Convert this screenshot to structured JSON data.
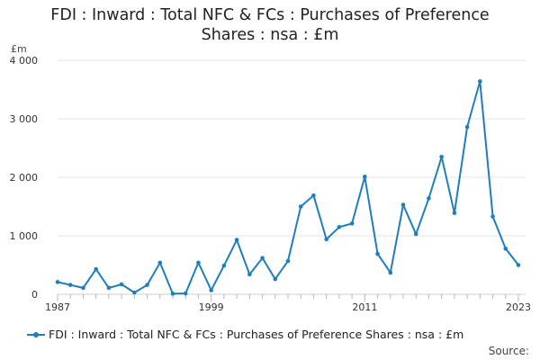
{
  "chart_data": {
    "type": "line",
    "title_line1": "FDI : Inward : Total NFC & FCs : Purchases of Preference",
    "title_line2": "Shares : nsa : £m",
    "ylabel": "£m",
    "xlabel": "",
    "ylim": [
      0,
      4000
    ],
    "y_ticks": [
      0,
      1000,
      2000,
      3000,
      4000
    ],
    "y_tick_labels": [
      "0",
      "1 000",
      "2 000",
      "3 000",
      "4 000"
    ],
    "x_tick_labels": [
      "1987",
      "1999",
      "2011",
      "2023"
    ],
    "x_ticks": [
      1987,
      1999,
      2011,
      2023
    ],
    "xlim": [
      1987,
      2023
    ],
    "grid": true,
    "legend_position": "bottom",
    "series": [
      {
        "name": "FDI : Inward : Total NFC & FCs : Purchases of Preference Shares : nsa : £m",
        "color": "#1f7fb8",
        "x": [
          1987,
          1988,
          1989,
          1990,
          1991,
          1992,
          1993,
          1994,
          1995,
          1996,
          1997,
          1998,
          1999,
          2000,
          2001,
          2002,
          2003,
          2004,
          2005,
          2006,
          2007,
          2008,
          2009,
          2010,
          2011,
          2012,
          2013,
          2014,
          2015,
          2016,
          2017,
          2018,
          2019,
          2020,
          2021,
          2022,
          2023
        ],
        "values": [
          210,
          160,
          110,
          430,
          110,
          170,
          30,
          160,
          540,
          10,
          15,
          540,
          70,
          490,
          930,
          340,
          620,
          260,
          570,
          1500,
          1690,
          940,
          1150,
          1210,
          2010,
          690,
          370,
          1530,
          1030,
          1640,
          2350,
          1390,
          2860,
          3640,
          1330,
          780,
          500
        ]
      }
    ],
    "source_label": "Source:"
  }
}
